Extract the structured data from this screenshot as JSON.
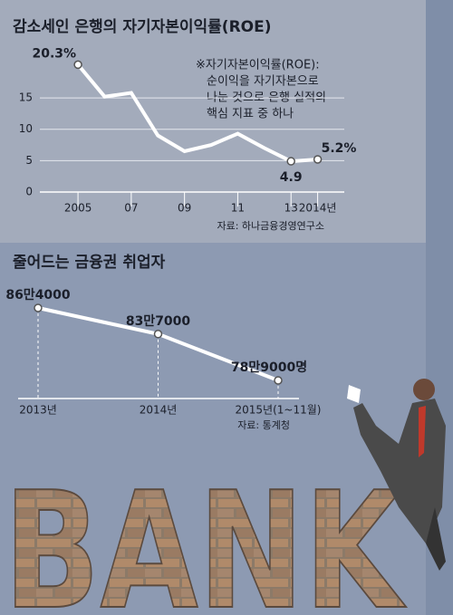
{
  "chart_data": [
    {
      "type": "line",
      "title": "감소세인 은행의 자기자본이익률(ROE)",
      "x": [
        2005,
        2006,
        2007,
        2008,
        2009,
        2010,
        2011,
        2012,
        2013,
        2014
      ],
      "values": [
        20.3,
        15.2,
        15.8,
        9.0,
        6.5,
        7.5,
        9.3,
        7.0,
        4.9,
        5.2
      ],
      "value_labels": [
        "20.3%",
        null,
        null,
        null,
        null,
        null,
        null,
        null,
        "4.9",
        "5.2%"
      ],
      "color": "#ffffff",
      "xlim": [
        2003.5,
        2015
      ],
      "xticks": [
        {
          "value": 2005,
          "label": "2005"
        },
        {
          "value": 2007,
          "label": "07"
        },
        {
          "value": 2009,
          "label": "09"
        },
        {
          "value": 2011,
          "label": "11"
        },
        {
          "value": 2013,
          "label": "13"
        },
        {
          "value": 2014,
          "label": "2014년"
        }
      ],
      "ylim": [
        0,
        20.5
      ],
      "yticks": [
        0,
        5,
        10,
        15
      ],
      "grid": true,
      "annotation": [
        "※자기자본이익률(ROE):",
        "순이익을 자기자본으로",
        "나눈 것으로 은행 실적의",
        "핵심 지표 중 하나"
      ],
      "source": "자료: 하나금융경영연구소"
    },
    {
      "type": "line",
      "title": "줄어드는 금융권 취업자",
      "categories": [
        "2013년",
        "2014년",
        "2015년(1~11월)"
      ],
      "values": [
        864000,
        837000,
        789000
      ],
      "value_labels": [
        "86만4000",
        "83만7000",
        "78만9000명"
      ],
      "color": "#ffffff",
      "source": "자료: 통계청"
    }
  ],
  "illustration_text": "BANK"
}
